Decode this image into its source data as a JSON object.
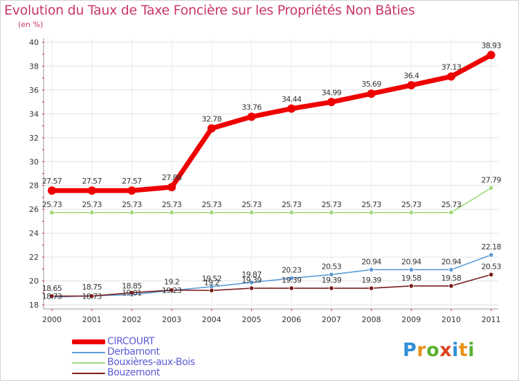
{
  "title": "Evolution du Taux de Taxe Foncière sur les Propriétés Non Bâties",
  "subtitle": "(en %)",
  "logo": {
    "text": "Proxiti",
    "letters": [
      "P",
      "r",
      "o",
      "x",
      "i",
      "t",
      "i"
    ],
    "colors": [
      "#2f8fd6",
      "#e8911b",
      "#5bb030",
      "#d9441c",
      "#2f8fd6",
      "#e8911b",
      "#5bb030"
    ]
  },
  "chart_data": {
    "type": "line",
    "title": "Evolution du Taux de Taxe Foncière sur les Propriétés Non Bâties",
    "ylabel": "(en %)",
    "xlabel": "",
    "ylim": [
      18,
      40
    ],
    "yticks": [
      "18",
      "20",
      "22",
      "24",
      "26",
      "28",
      "30",
      "32",
      "34",
      "36",
      "38",
      "40"
    ],
    "grid": true,
    "legend_position": "bottom-left",
    "categories": [
      "2000",
      "2001",
      "2002",
      "2003",
      "2004",
      "2005",
      "2006",
      "2007",
      "2008",
      "2009",
      "2010",
      "2011"
    ],
    "series": [
      {
        "name": "CIRCOURT",
        "color": "#ee0000",
        "emphasis": "thick",
        "values": [
          27.57,
          27.57,
          27.57,
          27.86,
          32.78,
          33.76,
          34.44,
          34.99,
          35.69,
          36.4,
          37.13,
          38.93
        ],
        "labels": [
          "27.57",
          "27.57",
          "27.57",
          "27.86",
          "32.78",
          "33.76",
          "34.44",
          "34.99",
          "35.69",
          "36.4",
          "37.13",
          "38.93"
        ]
      },
      {
        "name": "Derbamont",
        "color": "#5b9bd5",
        "emphasis": "normal",
        "values": [
          18.65,
          18.75,
          18.85,
          19.2,
          19.52,
          19.87,
          20.23,
          20.53,
          20.94,
          20.94,
          20.94,
          22.18
        ],
        "labels": [
          "18.65",
          "18.75",
          "18.85",
          "19.2",
          "19.52",
          "19.87",
          "20.23",
          "20.53",
          "20.94",
          "20.94",
          "20.94",
          "22.18"
        ]
      },
      {
        "name": "Bouxières-aux-Bois",
        "color": "#9fd97a",
        "emphasis": "normal",
        "values": [
          25.73,
          25.73,
          25.73,
          25.73,
          25.73,
          25.73,
          25.73,
          25.73,
          25.73,
          25.73,
          25.73,
          27.79
        ],
        "labels": [
          "25.73",
          "25.73",
          "25.73",
          "25.73",
          "25.73",
          "25.73",
          "25.73",
          "25.73",
          "25.73",
          "25.73",
          "25.73",
          "27.79"
        ]
      },
      {
        "name": "Bouzemont",
        "color": "#7a1a1a",
        "emphasis": "normal",
        "values": [
          18.73,
          18.73,
          19.01,
          19.23,
          19.2,
          19.39,
          19.39,
          19.39,
          19.39,
          19.58,
          19.58,
          20.53
        ],
        "labels": [
          "18.73",
          "18.73",
          "19.01",
          "19.23",
          "19.2",
          "19.39",
          "19.39",
          "19.39",
          "19.39",
          "19.58",
          "19.58",
          "20.53"
        ]
      }
    ]
  }
}
